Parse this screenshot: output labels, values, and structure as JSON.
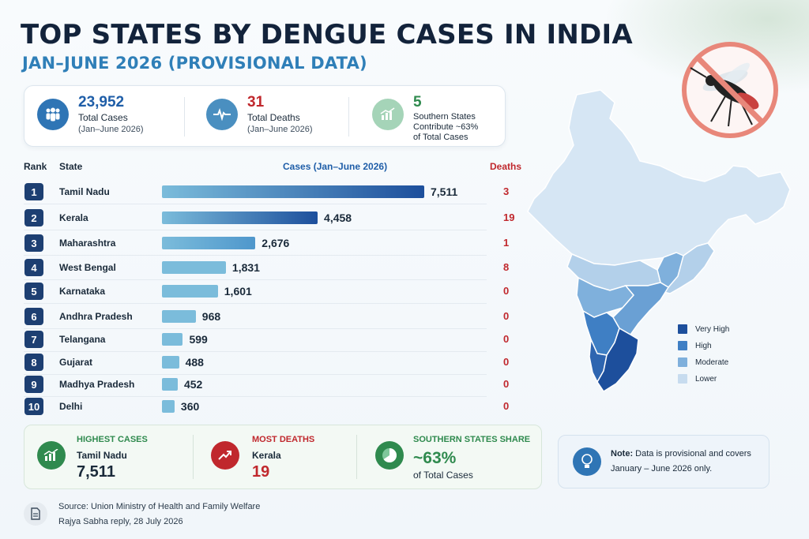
{
  "header": {
    "title": "TOP STATES BY DENGUE CASES IN INDIA",
    "subtitle": "JAN–JUNE 2026 (PROVISIONAL DATA)"
  },
  "kpis": [
    {
      "value": "23,952",
      "label": "Total Cases",
      "sub": "(Jan–June 2026)",
      "color": "#2f75b5",
      "icon": "people-icon"
    },
    {
      "value": "31",
      "label": "Total Deaths",
      "sub": "(Jan–June 2026)",
      "color": "#c0282d",
      "icon": "heartbeat-icon"
    },
    {
      "value": "5",
      "label": "Southern States",
      "sub": "Contribute ~63%",
      "sub2": "of Total Cases",
      "color": "#2f8a4e",
      "icon": "growth-chart-icon"
    }
  ],
  "table_headers": {
    "rank": "Rank",
    "state": "State",
    "cases": "Cases (Jan–June 2026)",
    "deaths": "Deaths"
  },
  "chart_data": {
    "type": "bar",
    "orientation": "horizontal",
    "title": "TOP STATES BY DENGUE CASES IN INDIA",
    "subtitle": "JAN–JUNE 2026 (PROVISIONAL DATA)",
    "ylabel": "State",
    "xlabel": "Cases (Jan–June 2026)",
    "xlim": [
      0,
      7511
    ],
    "categories": [
      "Tamil Nadu",
      "Kerala",
      "Maharashtra",
      "West Bengal",
      "Karnataka",
      "Andhra Pradesh",
      "Telangana",
      "Gujarat",
      "Madhya Pradesh",
      "Delhi"
    ],
    "ranks": [
      "1",
      "2",
      "3",
      "4",
      "5",
      "6",
      "7",
      "8",
      "9",
      "10"
    ],
    "values": [
      7511,
      4458,
      2676,
      1831,
      1601,
      968,
      599,
      488,
      452,
      360
    ],
    "value_labels": [
      "7,511",
      "4,458",
      "2,676",
      "1,831",
      "1,601",
      "968",
      "599",
      "488",
      "452",
      "360"
    ],
    "deaths": [
      "3",
      "19",
      "1",
      "8",
      "0",
      "0",
      "0",
      "0",
      "0",
      "0"
    ],
    "bar_color_dark": "#1d4f9c",
    "bar_color_light": "#7bbcdb"
  },
  "summary": [
    {
      "heading": "HIGHEST CASES",
      "name": "Tamil Nadu",
      "value": "7,511",
      "color": "#2f8a4e",
      "value_color": "#1a2a3a",
      "icon": "growth-chart-icon"
    },
    {
      "heading": "MOST DEATHS",
      "name": "Kerala",
      "value": "19",
      "color": "#c0282d",
      "value_color": "#c0282d",
      "icon": "trend-up-icon"
    },
    {
      "heading": "SOUTHERN STATES SHARE",
      "name": "~63%",
      "value": "of Total Cases",
      "color": "#2f8a4e",
      "value_color": "#1a2a3a",
      "icon": "pie-chart-icon"
    }
  ],
  "note": {
    "bold": "Note:",
    "text": " Data is provisional and covers January – June 2026 only."
  },
  "source": {
    "line1": "Source: Union Ministry of Health and Family Welfare",
    "line2": "Rajya Sabha reply, 28 July 2026"
  },
  "legend": [
    {
      "label": "Very High",
      "color": "#1d4f9c"
    },
    {
      "label": "High",
      "color": "#3f7fc4"
    },
    {
      "label": "Moderate",
      "color": "#7fb0dc"
    },
    {
      "label": "Lower",
      "color": "#c7dcef"
    }
  ]
}
